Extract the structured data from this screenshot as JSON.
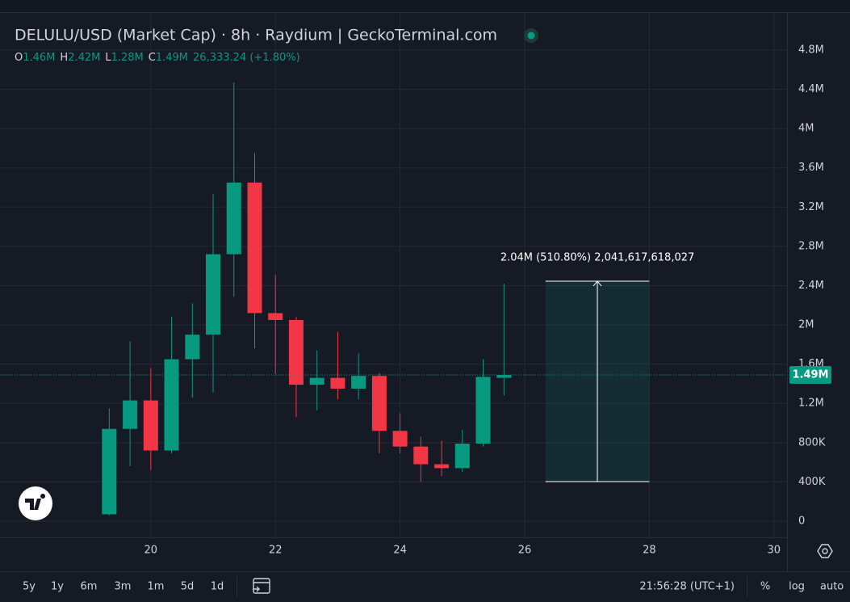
{
  "chart_data": {
    "type": "candlestick",
    "title": "DELULU/USD (Market Cap) · 8h · Raydium | GeckoTerminal.com",
    "legend": {
      "o": "O",
      "open": "1.46M",
      "h": "H",
      "high": "2.42M",
      "l": "L",
      "low": "1.28M",
      "c": "C",
      "close": "1.49M",
      "change": "26,333.24 (+1.80%)"
    },
    "x": [
      19.333,
      19.667,
      20,
      20.333,
      20.667,
      21,
      21.333,
      21.667,
      22,
      22.333,
      22.667,
      23,
      23.333,
      23.667,
      24,
      24.333,
      24.667,
      25,
      25.333,
      25.667
    ],
    "open": [
      70000,
      940000,
      1230000,
      720000,
      1650000,
      1900000,
      2720000,
      3450000,
      2120000,
      2050000,
      1390000,
      1460000,
      1350000,
      1480000,
      920000,
      760000,
      580000,
      540000,
      790000,
      1460000
    ],
    "high": [
      1150000,
      1830000,
      1560000,
      2080000,
      2220000,
      3330000,
      4470000,
      3750000,
      2510000,
      2080000,
      1740000,
      1930000,
      1710000,
      1510000,
      1100000,
      860000,
      820000,
      930000,
      1650000,
      2420000
    ],
    "low": [
      60000,
      560000,
      520000,
      690000,
      1260000,
      1310000,
      2290000,
      1760000,
      1500000,
      1060000,
      1130000,
      1240000,
      1240000,
      690000,
      690000,
      400000,
      460000,
      500000,
      760000,
      1280000
    ],
    "close": [
      940000,
      1230000,
      720000,
      1650000,
      1900000,
      2720000,
      3450000,
      2120000,
      2050000,
      1390000,
      1460000,
      1350000,
      1480000,
      920000,
      760000,
      580000,
      540000,
      790000,
      1470000,
      1490000
    ],
    "up_color": "#089981",
    "down_color": "#f23645",
    "xlim": [
      17.58,
      30.21
    ],
    "xticks": [
      20,
      22,
      24,
      26,
      28,
      30
    ],
    "ylim": [
      -165000,
      5310000
    ],
    "yticks": [
      0,
      {
        "value": 400000,
        "label": "400K"
      },
      {
        "value": 800000,
        "label": "800K"
      },
      {
        "value": 1200000,
        "label": "1.2M"
      },
      {
        "value": 1600000,
        "label": "1.6M"
      },
      {
        "value": 2000000,
        "label": "2M"
      },
      {
        "value": 2400000,
        "label": "2.4M"
      },
      {
        "value": 2800000,
        "label": "2.8M"
      },
      {
        "value": 3200000,
        "label": "3.2M"
      },
      {
        "value": 3600000,
        "label": "3.6M"
      },
      {
        "value": 4000000,
        "label": "4M"
      },
      {
        "value": 4400000,
        "label": "4.4M"
      },
      {
        "value": 4800000,
        "label": "4.8M"
      }
    ],
    "grid": true,
    "last_price": {
      "value": 1490000,
      "label": "1.49M"
    },
    "measure": {
      "x": [
        26.333,
        28
      ],
      "y": [
        403000,
        2445000
      ],
      "label": "2.04M (510.80%) 2,041,617,618,027"
    }
  },
  "toolbar": {
    "ranges": [
      "5y",
      "1y",
      "6m",
      "3m",
      "1m",
      "5d",
      "1d"
    ],
    "time": "21:56:28 (UTC+1)",
    "percent": "%",
    "log": "log",
    "auto": "auto"
  }
}
